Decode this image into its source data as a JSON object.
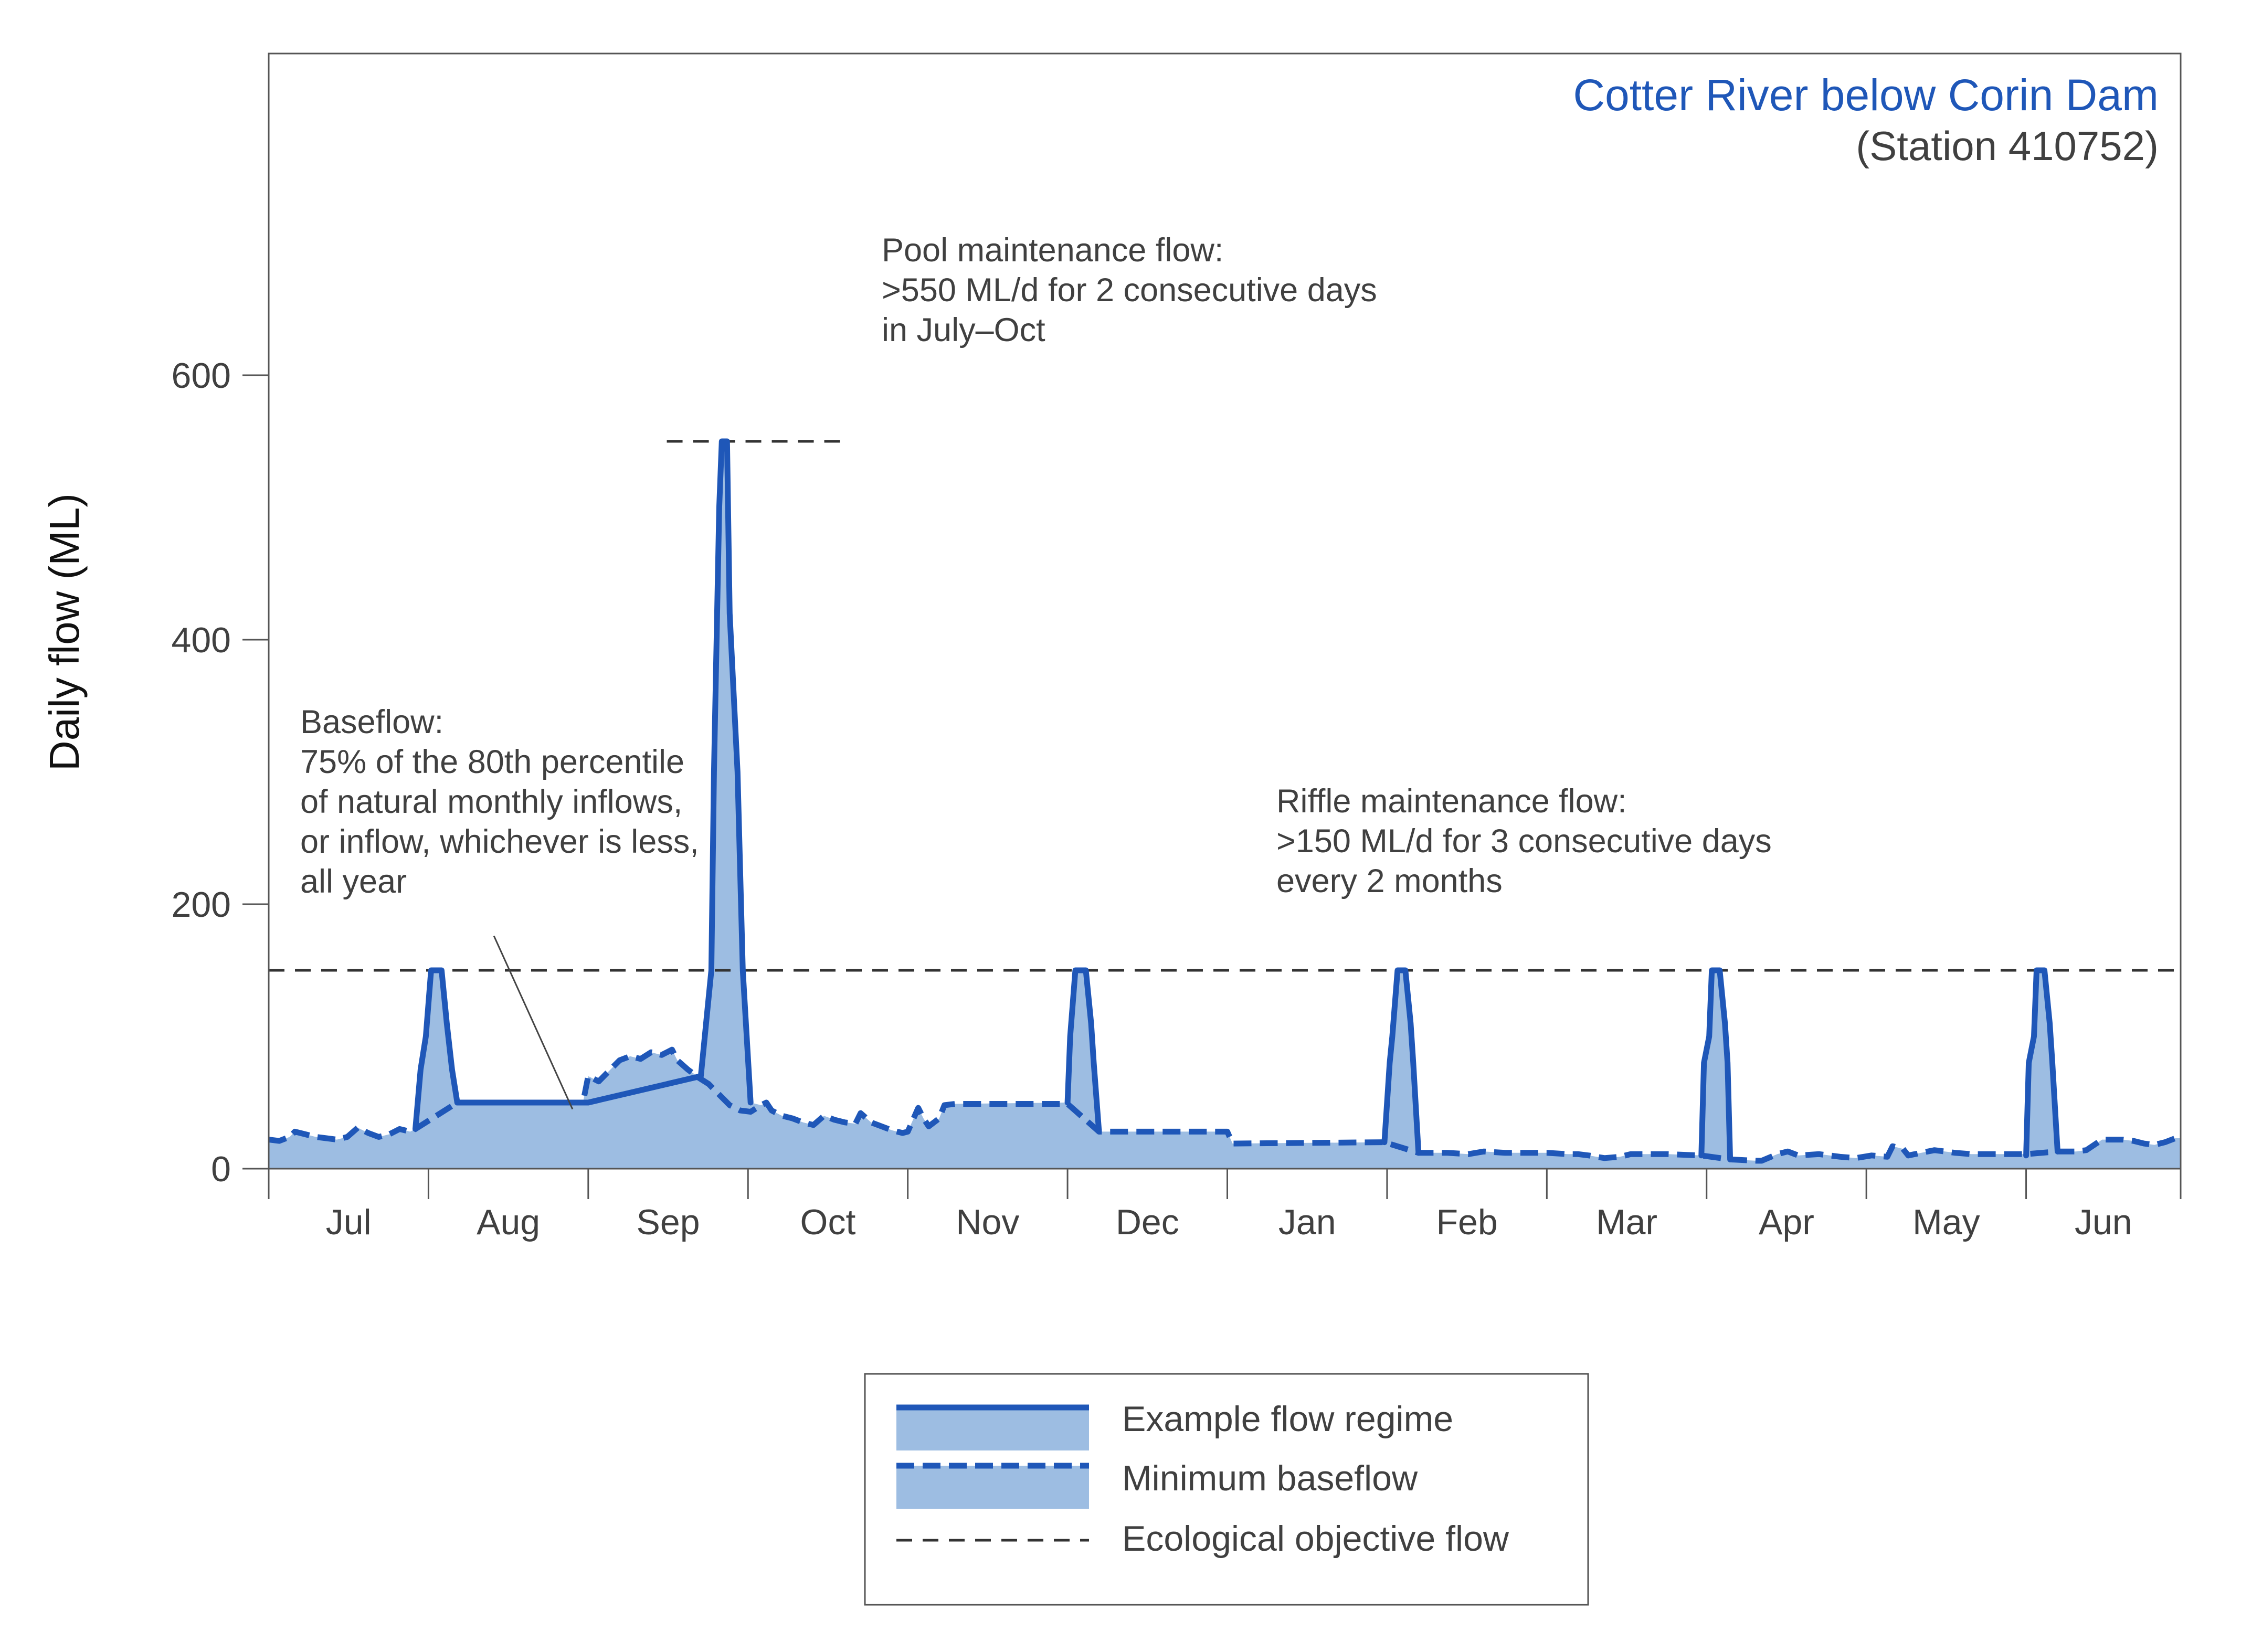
{
  "chart_data": {
    "type": "area",
    "title": "Cotter River below Corin Dam",
    "subtitle": "(Station 410752)",
    "xlabel": "",
    "ylabel": "Daily flow (ML)",
    "xlim": [
      0,
      365
    ],
    "ylim": [
      0,
      700
    ],
    "grid": false,
    "legend_position": "bottom-center",
    "months": [
      "Jul",
      "Aug",
      "Sep",
      "Oct",
      "Nov",
      "Dec",
      "Jan",
      "Feb",
      "Mar",
      "Apr",
      "May",
      "Jun"
    ],
    "month_starts": [
      0,
      30.5,
      61,
      91.5,
      122,
      152.5,
      183,
      213.5,
      244,
      274.5,
      305,
      335.5,
      365
    ],
    "yticks": [
      0,
      200,
      400,
      600
    ],
    "ytick_labels": [
      "0",
      "200",
      "400",
      "600"
    ],
    "colors": {
      "line": "#1F57B8",
      "fill": "#9DBDE2",
      "objective": "#333333",
      "title": "#1F57B8",
      "text": "#404040"
    },
    "series": [
      {
        "name": "Example flow regime",
        "style": "solid",
        "points": [
          [
            28,
            30
          ],
          [
            29,
            75
          ],
          [
            30,
            100
          ],
          [
            31,
            150
          ],
          [
            33,
            150
          ],
          [
            34,
            110
          ],
          [
            35,
            75
          ],
          [
            36,
            50
          ],
          [
            60,
            50
          ],
          [
            61,
            50
          ],
          [
            82.5,
            70
          ],
          [
            84.5,
            150
          ],
          [
            85,
            300
          ],
          [
            86,
            500
          ],
          [
            86.5,
            550
          ],
          [
            87.5,
            550
          ],
          [
            88,
            420
          ],
          [
            89.5,
            300
          ],
          [
            90.5,
            150
          ],
          [
            92,
            50
          ],
          [
            152.5,
            50
          ],
          [
            153,
            100
          ],
          [
            154,
            150
          ],
          [
            156,
            150
          ],
          [
            157,
            110
          ],
          [
            157.5,
            80
          ],
          [
            158.5,
            28
          ],
          [
            213,
            20
          ],
          [
            214,
            80
          ],
          [
            214.5,
            100
          ],
          [
            215.5,
            150
          ],
          [
            217,
            150
          ],
          [
            218,
            110
          ],
          [
            218.5,
            80
          ],
          [
            219.5,
            12
          ],
          [
            273.5,
            10
          ],
          [
            274,
            80
          ],
          [
            275,
            100
          ],
          [
            275.5,
            150
          ],
          [
            277,
            150
          ],
          [
            278,
            110
          ],
          [
            278.5,
            80
          ],
          [
            279,
            7
          ],
          [
            335.5,
            10
          ],
          [
            336,
            80
          ],
          [
            337,
            100
          ],
          [
            337.5,
            150
          ],
          [
            339,
            150
          ],
          [
            340,
            110
          ],
          [
            340.5,
            80
          ],
          [
            341.5,
            13
          ]
        ]
      },
      {
        "name": "Minimum baseflow",
        "style": "dashed",
        "points": [
          [
            0,
            22
          ],
          [
            2,
            21
          ],
          [
            4,
            24
          ],
          [
            5,
            28
          ],
          [
            7,
            26
          ],
          [
            9,
            24
          ],
          [
            11,
            23
          ],
          [
            13,
            22
          ],
          [
            15,
            24
          ],
          [
            17,
            31
          ],
          [
            19,
            27
          ],
          [
            21,
            24
          ],
          [
            23,
            26
          ],
          [
            25,
            30
          ],
          [
            27,
            28
          ],
          [
            28,
            30
          ],
          [
            36,
            50
          ],
          [
            60,
            50
          ],
          [
            61,
            70
          ],
          [
            63,
            66
          ],
          [
            66,
            78
          ],
          [
            67,
            82
          ],
          [
            69,
            85
          ],
          [
            71,
            83
          ],
          [
            73,
            88
          ],
          [
            75,
            86
          ],
          [
            77,
            90
          ],
          [
            78,
            82
          ],
          [
            80,
            75
          ],
          [
            82,
            69
          ],
          [
            84,
            64
          ],
          [
            88,
            48
          ],
          [
            90,
            44
          ],
          [
            92,
            43
          ],
          [
            94,
            48
          ],
          [
            95,
            50
          ],
          [
            96,
            44
          ],
          [
            98,
            40
          ],
          [
            100,
            38
          ],
          [
            102,
            35
          ],
          [
            104,
            33
          ],
          [
            106,
            40
          ],
          [
            108,
            37
          ],
          [
            110,
            35
          ],
          [
            112,
            34
          ],
          [
            113,
            42
          ],
          [
            115,
            35
          ],
          [
            117,
            32
          ],
          [
            119,
            29
          ],
          [
            121,
            27
          ],
          [
            122,
            28
          ],
          [
            124,
            46
          ],
          [
            125,
            38
          ],
          [
            126,
            32
          ],
          [
            127,
            35
          ],
          [
            128,
            38
          ],
          [
            129,
            48
          ],
          [
            131,
            49
          ],
          [
            152.5,
            49
          ],
          [
            158.5,
            28
          ],
          [
            183,
            28
          ],
          [
            184,
            19
          ],
          [
            213,
            20
          ],
          [
            219.5,
            12
          ],
          [
            225,
            12
          ],
          [
            229,
            11
          ],
          [
            232,
            13
          ],
          [
            236,
            12
          ],
          [
            244,
            12
          ],
          [
            248,
            11
          ],
          [
            250,
            11
          ],
          [
            252,
            10
          ],
          [
            255,
            8
          ],
          [
            258,
            9
          ],
          [
            260,
            11
          ],
          [
            264,
            11
          ],
          [
            267,
            11
          ],
          [
            273.5,
            10
          ],
          [
            279,
            7
          ],
          [
            284,
            6
          ],
          [
            285,
            6
          ],
          [
            288,
            11
          ],
          [
            290,
            13
          ],
          [
            292,
            10
          ],
          [
            296,
            11
          ],
          [
            300,
            9
          ],
          [
            303,
            8
          ],
          [
            306,
            10
          ],
          [
            309,
            9
          ],
          [
            310,
            17
          ],
          [
            312,
            15
          ],
          [
            313,
            10
          ],
          [
            318,
            14
          ],
          [
            322,
            12
          ],
          [
            325,
            11
          ],
          [
            330,
            11
          ],
          [
            335.5,
            11
          ],
          [
            341.5,
            13
          ],
          [
            345,
            13
          ],
          [
            347,
            14
          ],
          [
            350,
            22
          ],
          [
            354,
            22
          ],
          [
            356,
            21
          ],
          [
            358,
            19
          ],
          [
            360,
            18
          ],
          [
            362,
            20
          ],
          [
            364,
            23
          ],
          [
            365,
            23
          ]
        ]
      },
      {
        "name": "Ecological objective flow",
        "style": "thin-dashed",
        "lines": [
          {
            "x": [
              0,
              365
            ],
            "y": 150
          },
          {
            "x": [
              76,
              111
            ],
            "y": 550
          }
        ]
      }
    ],
    "annotations": [
      {
        "lines": [
          "Pool maintenance flow:",
          ">550 ML/d for 2 consecutive days",
          "in July–Oct"
        ],
        "x": 117,
        "y": 575
      },
      {
        "lines": [
          "Baseflow:",
          "75% of the 80th percentile",
          "of natural monthly inflows,",
          "or inflow, whichever is less,",
          "all year"
        ],
        "x": 6,
        "y": 279,
        "pointer_from": [
          43,
          176
        ],
        "pointer_to": [
          58,
          45
        ]
      },
      {
        "lines": [
          "Riffle maintenance flow:",
          ">150 ML/d for 3 consecutive days",
          "every 2 months"
        ],
        "x": 192,
        "y": 229
      }
    ],
    "legend": [
      {
        "label": "Example flow regime",
        "style": "solid"
      },
      {
        "label": "Minimum baseflow",
        "style": "dashed"
      },
      {
        "label": "Ecological objective flow",
        "style": "thin-dashed"
      }
    ]
  }
}
